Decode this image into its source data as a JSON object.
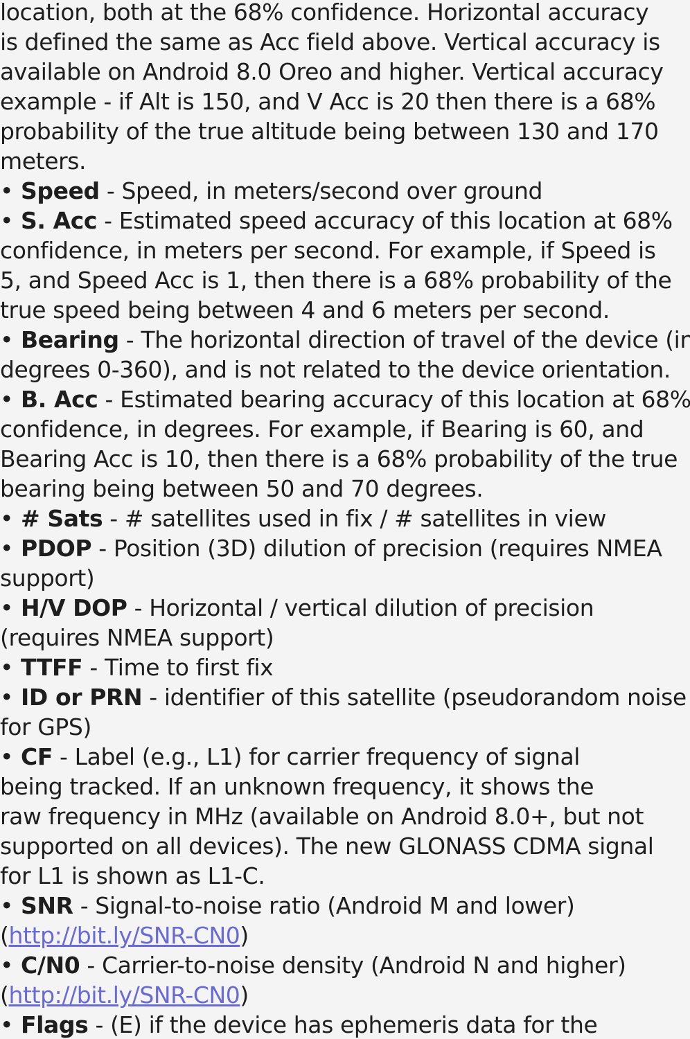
{
  "lines": [
    {
      "type": "text",
      "text": "location, both at the 68% confidence. Horizontal accuracy"
    },
    {
      "type": "text",
      "text": "is defined the same as Acc field above. Vertical accuracy is"
    },
    {
      "type": "text",
      "text": "available on Android 8.0 Oreo and higher. Vertical accuracy"
    },
    {
      "type": "text",
      "text": "example - if Alt is 150, and V Acc is 20 then there is a 68%"
    },
    {
      "type": "text",
      "text": "probability of the true altitude being between 130 and 170"
    },
    {
      "type": "text",
      "text": "meters."
    },
    {
      "type": "item",
      "bullet": "•",
      "term": "Speed",
      "rest": " - Speed, in meters/second over ground"
    },
    {
      "type": "item",
      "bullet": "•",
      "term": "S. Acc",
      "rest": " - Estimated speed accuracy of this location at 68%"
    },
    {
      "type": "text",
      "text": "confidence, in meters per second. For example, if Speed is"
    },
    {
      "type": "text",
      "text": "5, and Speed Acc is 1, then there is a 68% probability of the"
    },
    {
      "type": "text",
      "text": "true speed being between 4 and 6 meters per second."
    },
    {
      "type": "item",
      "bullet": "•",
      "term": "Bearing",
      "rest": " - The horizontal direction of travel of the device (in"
    },
    {
      "type": "text",
      "text": "degrees 0-360), and is not related to the device orientation."
    },
    {
      "type": "item",
      "bullet": "•",
      "term": "B. Acc",
      "rest": " - Estimated bearing accuracy of this location at 68%"
    },
    {
      "type": "text",
      "text": "confidence, in degrees. For example, if Bearing is 60, and"
    },
    {
      "type": "text",
      "text": "Bearing Acc is 10, then there is a 68% probability of the true"
    },
    {
      "type": "text",
      "text": "bearing being between 50 and 70 degrees."
    },
    {
      "type": "item",
      "bullet": "•",
      "term": "# Sats",
      "rest": " - # satellites used in fix / # satellites in view"
    },
    {
      "type": "item",
      "bullet": "•",
      "term": "PDOP",
      "rest": " - Position (3D) dilution of precision (requires NMEA"
    },
    {
      "type": "text",
      "text": "support)"
    },
    {
      "type": "item",
      "bullet": "•",
      "term": "H/V DOP",
      "rest": " - Horizontal / vertical dilution of precision"
    },
    {
      "type": "text",
      "text": "(requires NMEA support)"
    },
    {
      "type": "item",
      "bullet": "•",
      "term": "TTFF",
      "rest": " - Time to first fix"
    },
    {
      "type": "item",
      "bullet": "•",
      "term": "ID or PRN",
      "rest": " - identifier of this satellite (pseudorandom noise"
    },
    {
      "type": "text",
      "text": "for GPS)"
    },
    {
      "type": "item",
      "bullet": "•",
      "term": "CF",
      "rest": " - Label (e.g., L1) for carrier frequency of signal"
    },
    {
      "type": "text",
      "text": "being tracked. If an unknown frequency, it shows the"
    },
    {
      "type": "text",
      "text": "raw frequency in MHz (available on Android 8.0+, but not"
    },
    {
      "type": "text",
      "text": "supported on all devices). The new GLONASS CDMA signal"
    },
    {
      "type": "text",
      "text": "for L1 is shown as L1-C."
    },
    {
      "type": "item",
      "bullet": "•",
      "term": "SNR",
      "rest": " - Signal-to-noise ratio (Android M and lower)"
    },
    {
      "type": "link",
      "open": "(",
      "link": "http://bit.ly/SNR-CN0",
      "close": ")"
    },
    {
      "type": "item",
      "bullet": "•",
      "term": "C/N0",
      "rest": " - Carrier-to-noise density (Android N and higher)"
    },
    {
      "type": "link",
      "open": "(",
      "link": "http://bit.ly/SNR-CN0",
      "close": ")"
    },
    {
      "type": "item",
      "bullet": "•",
      "term": "Flags",
      "rest": " - (E) if the device has ephemeris data for the"
    }
  ],
  "colors": {
    "background": "#f4f4f4",
    "text": "#1e1e1e",
    "link": "#6a6ad6"
  }
}
